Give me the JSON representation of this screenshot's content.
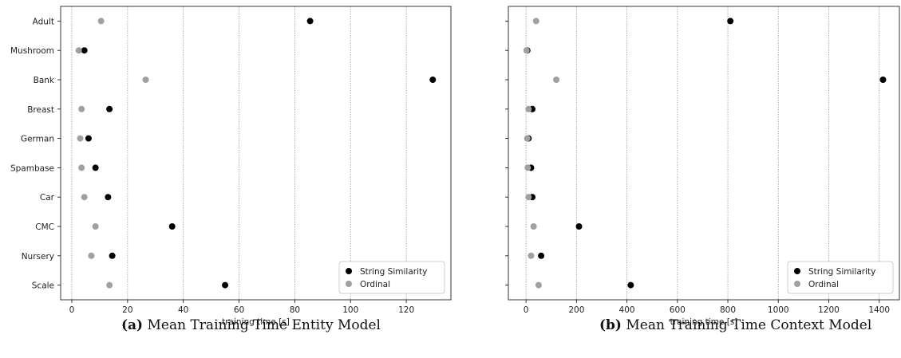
{
  "chart_data": [
    {
      "type": "scatter",
      "xlabel": "training time [s]",
      "categories": [
        "Adult",
        "Mushroom",
        "Bank",
        "Breast",
        "German",
        "Spambase",
        "Car",
        "CMC",
        "Nursery",
        "Scale"
      ],
      "xticks": [
        0,
        20,
        40,
        60,
        80,
        100,
        120
      ],
      "xlim": [
        -4,
        136
      ],
      "grid": "vertical dotted",
      "legend": "bottom-right",
      "series": [
        {
          "name": "String Similarity",
          "color": "#000000",
          "values": [
            85.5,
            4.5,
            129.5,
            13.5,
            6,
            8.5,
            13,
            36,
            14.5,
            55
          ]
        },
        {
          "name": "Ordinal",
          "color": "#a0a0a0",
          "values": [
            10.5,
            2.5,
            26.5,
            3.5,
            3,
            3.5,
            4.5,
            8.5,
            7,
            13.5
          ]
        }
      ],
      "caption_label": "(a)",
      "caption_text": "Mean Training Time Entity Model"
    },
    {
      "type": "scatter",
      "xlabel": "training time [s]",
      "categories": [
        "Adult",
        "Mushroom",
        "Bank",
        "Breast",
        "German",
        "Spambase",
        "Car",
        "CMC",
        "Nursery",
        "Scale"
      ],
      "xticks": [
        0,
        200,
        400,
        600,
        800,
        1000,
        1200,
        1400
      ],
      "xlim": [
        -70,
        1480
      ],
      "grid": "vertical dotted",
      "legend": "bottom-right",
      "series": [
        {
          "name": "String Similarity",
          "color": "#000000",
          "values": [
            810,
            5,
            1415,
            25,
            10,
            20,
            25,
            210,
            60,
            415
          ]
        },
        {
          "name": "Ordinal",
          "color": "#a0a0a0",
          "values": [
            40,
            2,
            120,
            10,
            5,
            7,
            10,
            30,
            20,
            50
          ]
        }
      ],
      "caption_label": "(b)",
      "caption_text": "Mean Training Time Context Model"
    }
  ]
}
